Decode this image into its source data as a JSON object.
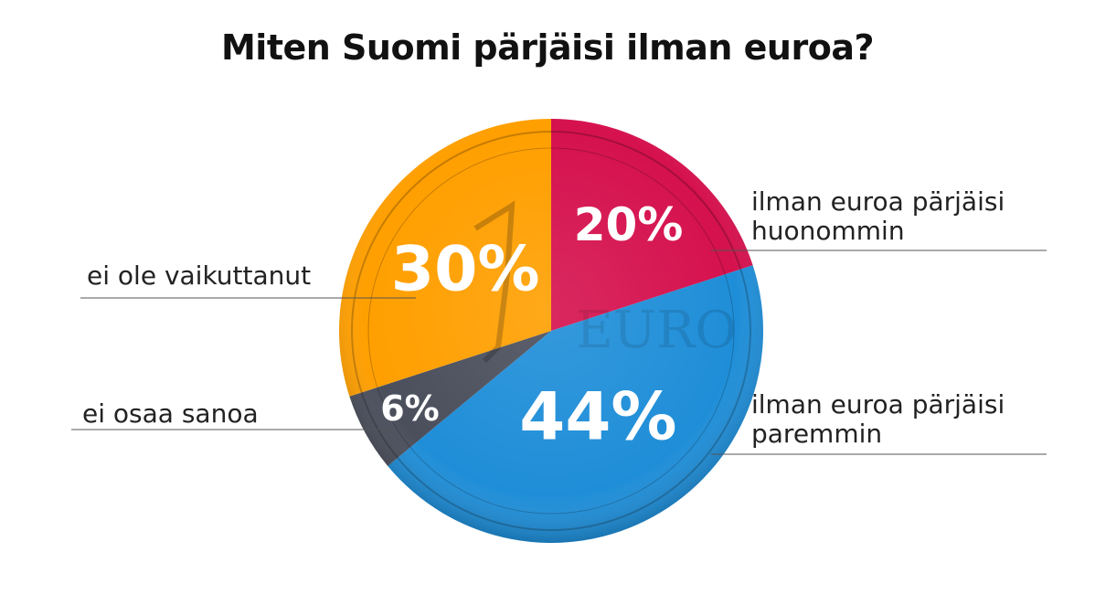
{
  "chart_data": {
    "type": "pie",
    "title": "Miten Suomi pärjäisi ilman euroa?",
    "slices": [
      {
        "label_lines": [
          "ilman euroa pärjäisi",
          "huonommin"
        ],
        "value": 20,
        "value_label": "20%",
        "color": "#d5114e"
      },
      {
        "label_lines": [
          "ilman euroa pärjäisi",
          "paremmin"
        ],
        "value": 44,
        "value_label": "44%",
        "color": "#1f8ed8"
      },
      {
        "label_lines": [
          "ei osaa sanoa"
        ],
        "value": 6,
        "value_label": "6%",
        "color": "#4b4f5c"
      },
      {
        "label_lines": [
          "ei ole vaikuttanut"
        ],
        "value": 30,
        "value_label": "30%",
        "color": "#ff9f00"
      }
    ],
    "start_angle_deg": 0,
    "direction": "clockwise"
  }
}
